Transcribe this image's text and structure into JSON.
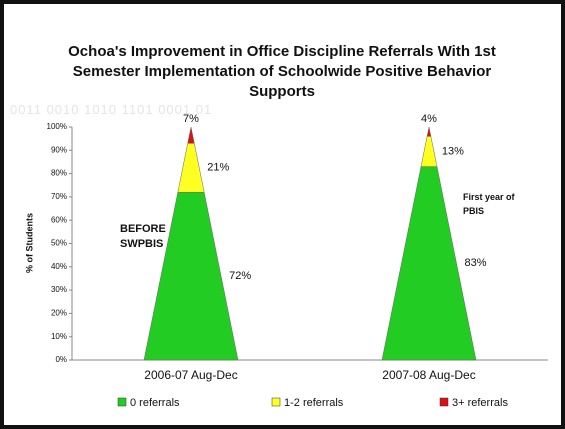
{
  "chart_data": {
    "type": "stacked-cone",
    "title": "Ochoa's Improvement in Office Discipline Referrals With 1st Semester Implementation of Schoolwide Positive Behavior Supports",
    "background_text": "0011 0010 1010 1101 0001 01",
    "y_label": "% of Students",
    "categories": [
      "2006-07 Aug-Dec",
      "2007-08 Aug-Dec"
    ],
    "series": [
      {
        "name": "0 referrals",
        "color": "#22cc22",
        "values": [
          72,
          83
        ],
        "value_labels": [
          "72%",
          "83%"
        ]
      },
      {
        "name": "1-2 referrals",
        "color": "#ffff22",
        "values": [
          21,
          13
        ],
        "value_labels": [
          "21%",
          "13%"
        ]
      },
      {
        "name": "3+ referrals",
        "color": "#dd1111",
        "values": [
          7,
          4
        ],
        "value_labels": [
          "7%",
          "4%"
        ]
      }
    ],
    "ylim": [
      0,
      100
    ],
    "yticks": [
      {
        "value": 0,
        "label": "0%"
      },
      {
        "value": 10,
        "label": "10%"
      },
      {
        "value": 20,
        "label": "20%"
      },
      {
        "value": 30,
        "label": "30%"
      },
      {
        "value": 40,
        "label": "40%"
      },
      {
        "value": 50,
        "label": "50%"
      },
      {
        "value": 60,
        "label": "60%"
      },
      {
        "value": 70,
        "label": "70%"
      },
      {
        "value": 80,
        "label": "80%"
      },
      {
        "value": 90,
        "label": "90%"
      },
      {
        "value": 100,
        "label": "100%"
      }
    ],
    "annotations": [
      "BEFORE SWPBIS",
      "First year of PBIS"
    ],
    "grid": false
  }
}
